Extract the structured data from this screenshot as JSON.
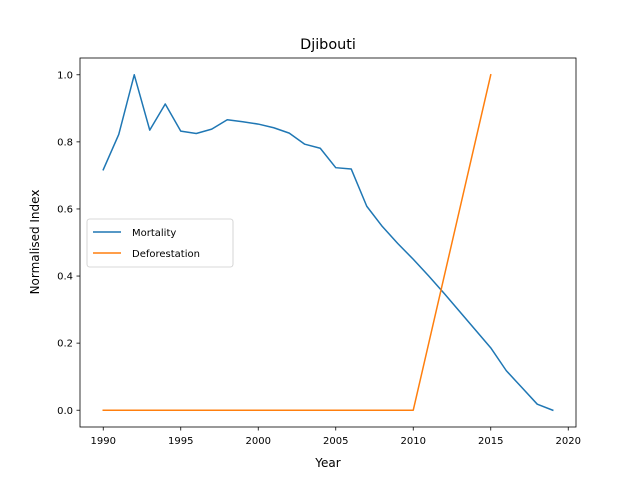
{
  "chart_data": {
    "type": "line",
    "title": "Djibouti",
    "xlabel": "Year",
    "ylabel": "Normalised Index",
    "xlim": [
      1988.5,
      2020.5
    ],
    "ylim": [
      -0.05,
      1.05
    ],
    "xticks": [
      1990,
      1995,
      2000,
      2005,
      2010,
      2015,
      2020
    ],
    "xtick_labels": [
      "1990",
      "1995",
      "2000",
      "2005",
      "2010",
      "2015",
      "2020"
    ],
    "yticks": [
      0.0,
      0.2,
      0.4,
      0.6,
      0.8,
      1.0
    ],
    "ytick_labels": [
      "0.0",
      "0.2",
      "0.4",
      "0.6",
      "0.8",
      "1.0"
    ],
    "grid": false,
    "legend_position": "center-left",
    "series": [
      {
        "name": "Mortality",
        "color": "#1f77b4",
        "x": [
          1990,
          1991,
          1992,
          1993,
          1994,
          1995,
          1996,
          1997,
          1998,
          1999,
          2000,
          2001,
          2002,
          2003,
          2004,
          2005,
          2006,
          2007,
          2008,
          2009,
          2010,
          2011,
          2012,
          2013,
          2014,
          2015,
          2016,
          2017,
          2018,
          2019
        ],
        "y": [
          0.717,
          0.822,
          1.0,
          0.835,
          0.913,
          0.832,
          0.825,
          0.838,
          0.866,
          0.86,
          0.853,
          0.842,
          0.826,
          0.793,
          0.781,
          0.723,
          0.719,
          0.608,
          0.548,
          0.497,
          0.45,
          0.4,
          0.348,
          0.294,
          0.24,
          0.186,
          0.118,
          0.068,
          0.018,
          0.0
        ]
      },
      {
        "name": "Deforestation",
        "color": "#ff7f0e",
        "x": [
          1990,
          1995,
          2000,
          2005,
          2010,
          2015
        ],
        "y": [
          0.0,
          0.0,
          0.0,
          0.0,
          0.0,
          1.0
        ]
      }
    ]
  }
}
